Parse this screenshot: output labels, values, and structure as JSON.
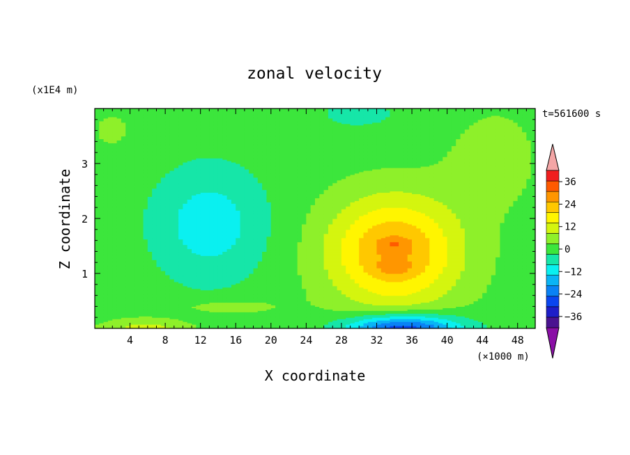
{
  "chart_data": {
    "type": "heatmap",
    "title": "zonal velocity",
    "xlabel": "X coordinate",
    "ylabel": "Z coordinate",
    "x_unit": "(×1000 m)",
    "y_unit": "(x1E4 m)",
    "time_label": "t=561600 s",
    "xlim": [
      0,
      50
    ],
    "ylim": [
      0,
      4
    ],
    "x_ticks": [
      4,
      8,
      12,
      16,
      20,
      24,
      28,
      32,
      36,
      40,
      44,
      48
    ],
    "y_ticks": [
      1,
      2,
      3
    ],
    "colorbar": {
      "levels": [
        -42,
        -36,
        -30,
        -24,
        -18,
        -12,
        -6,
        0,
        6,
        12,
        18,
        24,
        30,
        36,
        42
      ],
      "tick_labels": [
        "36",
        "24",
        "12",
        "0",
        "−12",
        "−24",
        "−36"
      ],
      "tick_values": [
        36,
        24,
        12,
        0,
        -12,
        -24,
        -36
      ],
      "under_color": "#8a0fa6",
      "over_color": "#f4a6a6",
      "colors": [
        "#4a1390",
        "#1e1ec8",
        "#0a46f0",
        "#0a82f5",
        "#0ab4f5",
        "#0af0f0",
        "#16e6a8",
        "#3ce63c",
        "#8ef02a",
        "#d4f50f",
        "#fff500",
        "#ffc800",
        "#ff9600",
        "#ff5a00",
        "#f01e1e"
      ]
    },
    "features": [
      {
        "kind": "min",
        "x": 13,
        "z": 1.9,
        "value": -11
      },
      {
        "kind": "max",
        "x": 34,
        "z": 1.4,
        "value": 28
      },
      {
        "kind": "min",
        "x": 35,
        "z": 0.1,
        "value": -31
      },
      {
        "kind": "max",
        "x": 6,
        "z": 0.05,
        "value": 11
      }
    ]
  }
}
